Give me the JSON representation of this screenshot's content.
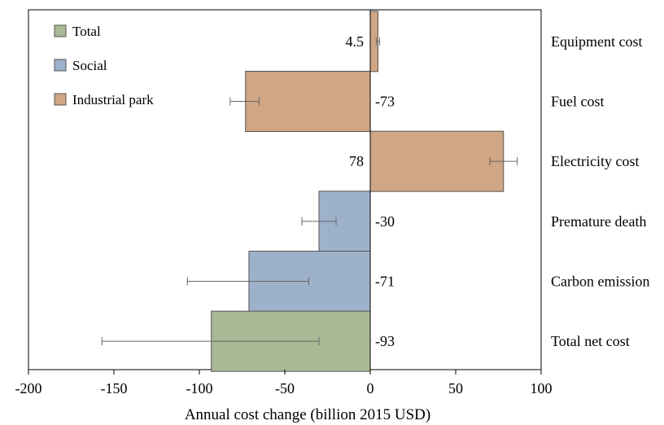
{
  "chart_data": {
    "type": "bar",
    "orientation": "horizontal",
    "xlabel": "Annual cost change (billion 2015 USD)",
    "xlim": [
      -200,
      100
    ],
    "xticks": [
      -200,
      -150,
      -100,
      -50,
      0,
      50,
      100
    ],
    "grid": false,
    "legend_position": "top-left",
    "legend": [
      {
        "name": "Total",
        "color": "#a9b995"
      },
      {
        "name": "Social",
        "color": "#9eb1cb"
      },
      {
        "name": "Industrial park",
        "color": "#d0a684"
      }
    ],
    "categories": [
      "Equipment cost",
      "Fuel cost",
      "Electricity cost",
      "Premature death",
      "Carbon emission",
      "Total net cost"
    ],
    "values": [
      4.5,
      -73,
      78,
      -30,
      -71,
      -93
    ],
    "value_labels": [
      "4.5",
      "-73",
      "78",
      "-30",
      "-71",
      "-93"
    ],
    "groups": [
      "Industrial park",
      "Industrial park",
      "Industrial park",
      "Social",
      "Social",
      "Total"
    ],
    "error_low": [
      3.5,
      -82,
      70,
      -40,
      -107,
      -157
    ],
    "error_high": [
      5.5,
      -65,
      86,
      -20,
      -36,
      -30
    ]
  }
}
